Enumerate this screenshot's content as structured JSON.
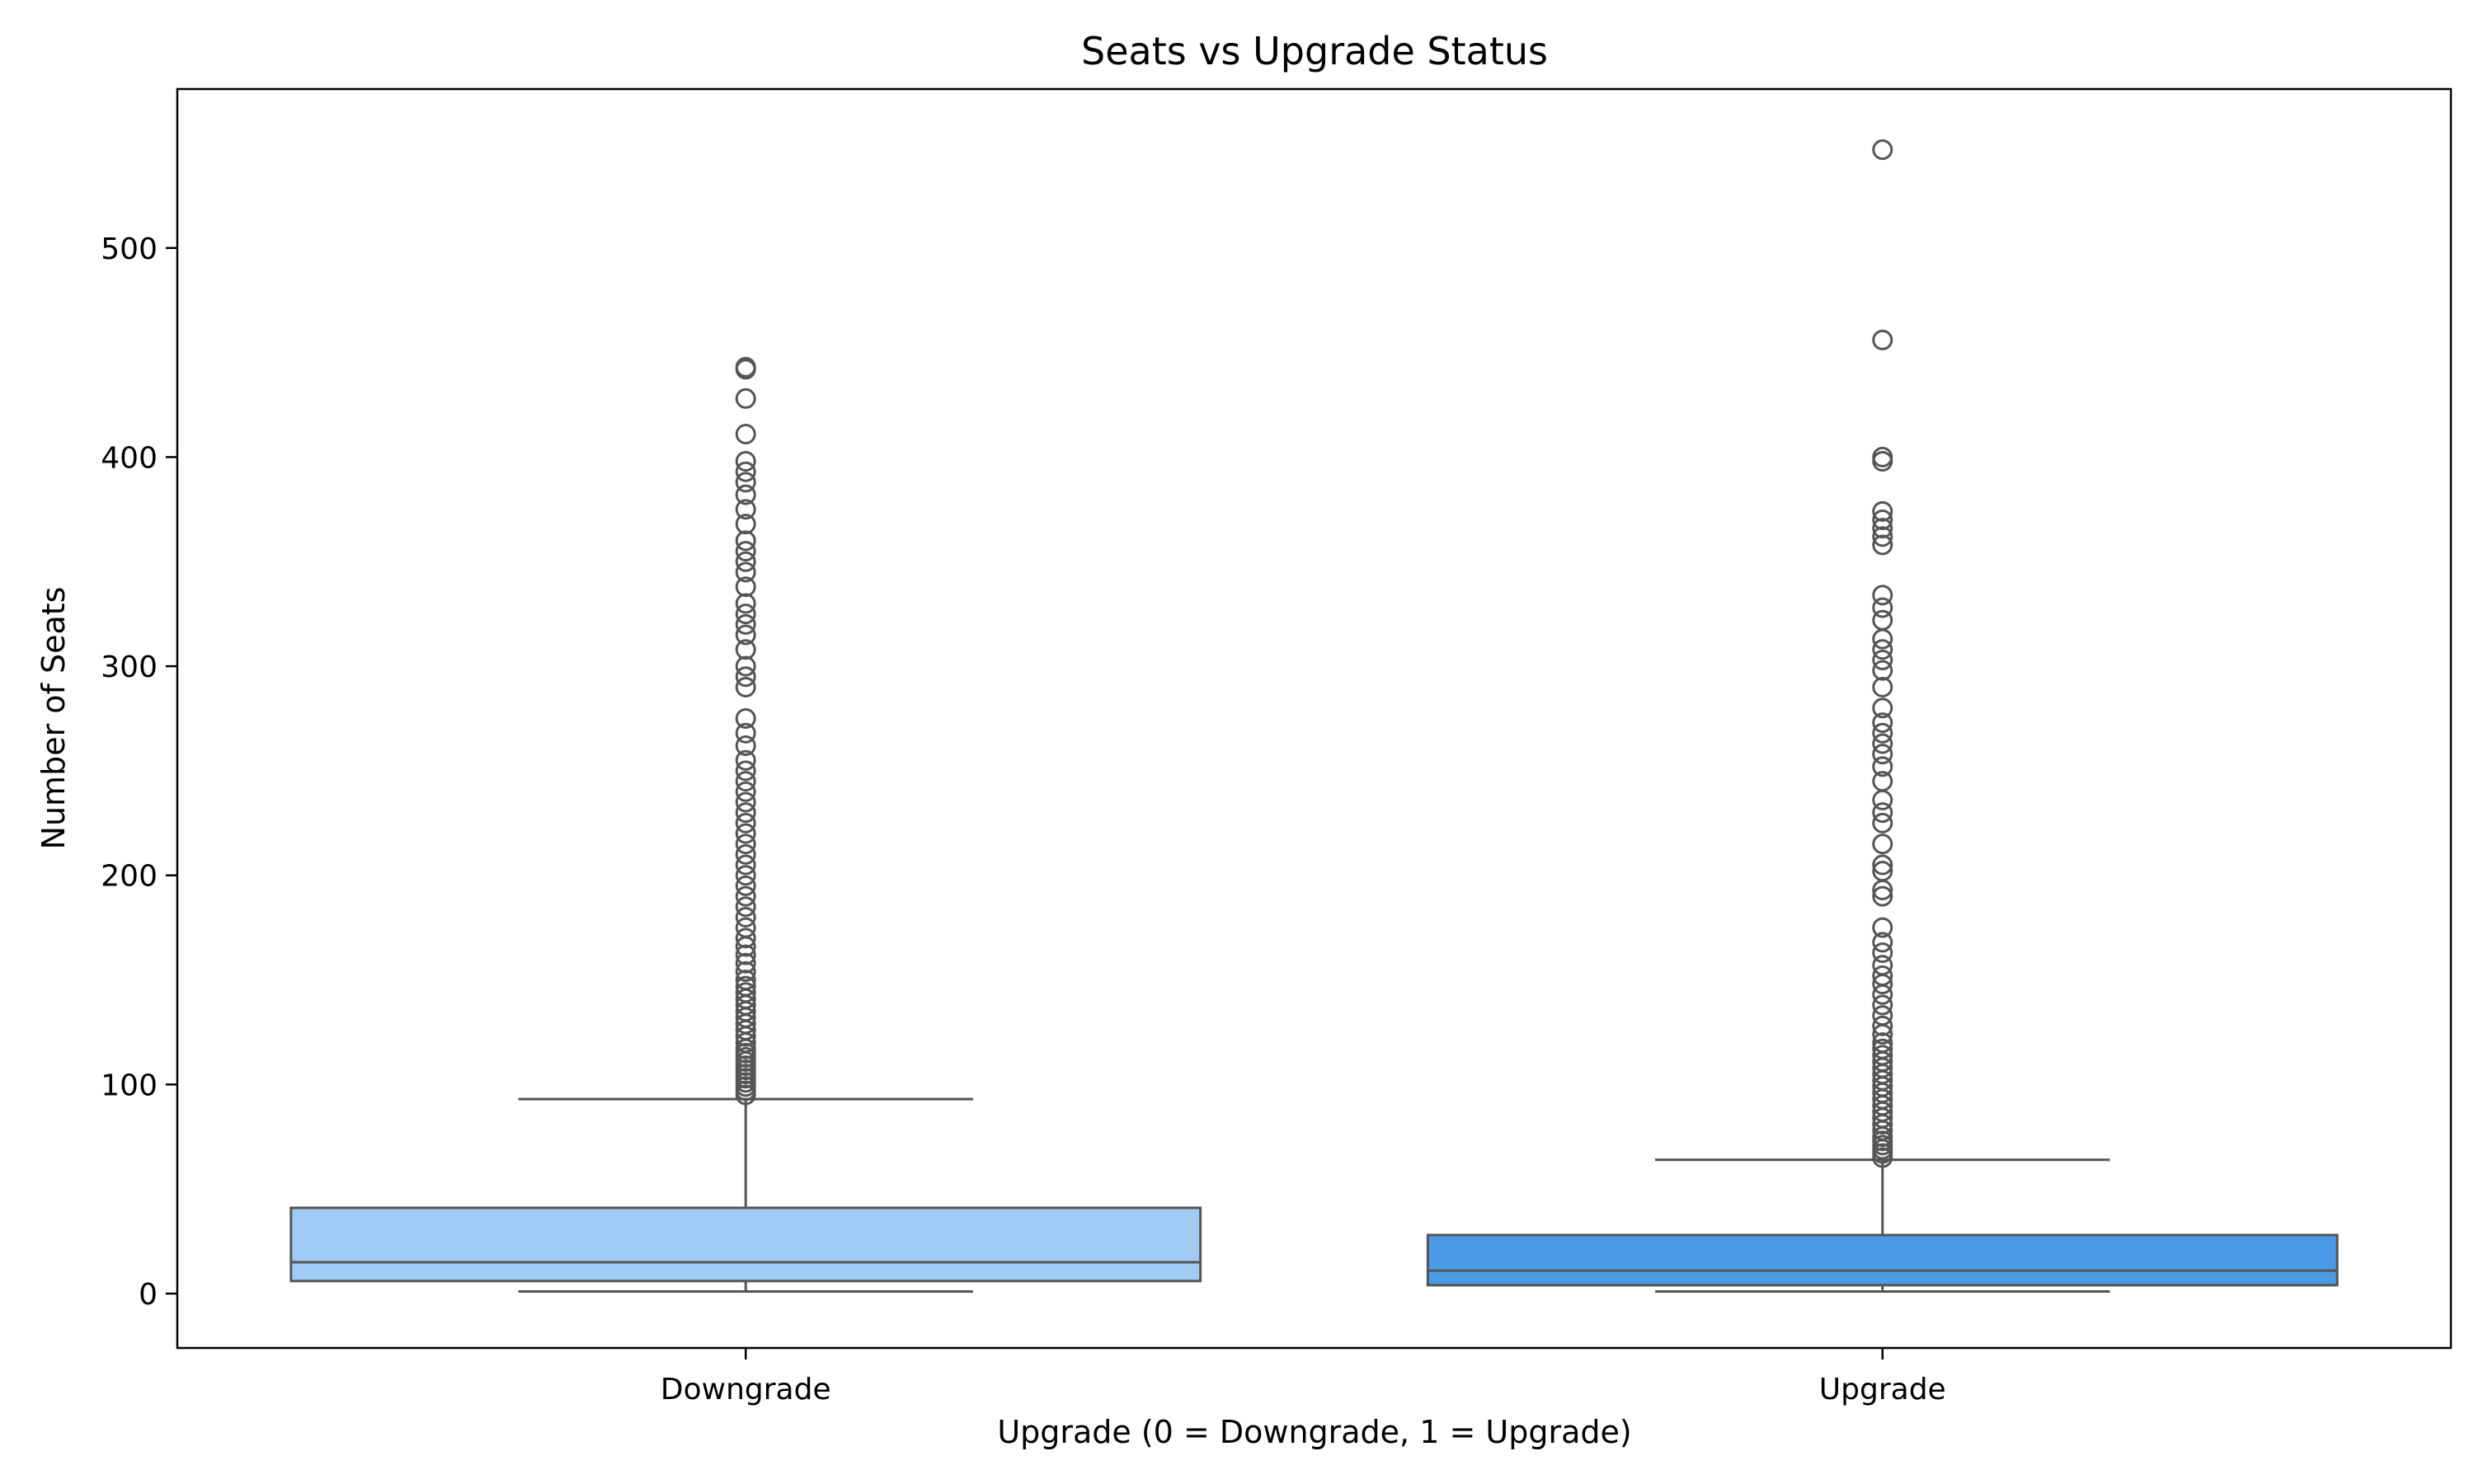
{
  "chart_data": {
    "type": "box",
    "title": "Seats vs Upgrade Status",
    "xlabel": "Upgrade (0 = Downgrade, 1 = Upgrade)",
    "ylabel": "Number of Seats",
    "ylim": [
      -26,
      576
    ],
    "yticks": [
      0,
      100,
      200,
      300,
      400,
      500
    ],
    "grid": false,
    "categories": [
      "Downgrade",
      "Upgrade"
    ],
    "colors": [
      "#a0cbf5",
      "#4a9ae6"
    ],
    "edge_color": "#555555",
    "boxes": [
      {
        "category": "Downgrade",
        "whisker_low": 1,
        "q1": 6,
        "median": 15,
        "q3": 41,
        "whisker_high": 93,
        "outliers": [
          95,
          97,
          99,
          101,
          103,
          105,
          107,
          109,
          111,
          113,
          115,
          117,
          120,
          123,
          126,
          129,
          132,
          135,
          138,
          141,
          144,
          147,
          150,
          154,
          158,
          162,
          166,
          170,
          175,
          180,
          185,
          190,
          195,
          200,
          205,
          210,
          215,
          220,
          225,
          230,
          235,
          240,
          245,
          250,
          255,
          262,
          268,
          275,
          290,
          295,
          300,
          308,
          315,
          320,
          325,
          330,
          338,
          345,
          350,
          355,
          360,
          368,
          375,
          382,
          388,
          393,
          398,
          411,
          428,
          442,
          443
        ]
      },
      {
        "category": "Upgrade",
        "whisker_low": 1,
        "q1": 4,
        "median": 11,
        "q3": 28,
        "whisker_high": 64,
        "outliers": [
          65,
          67,
          69,
          71,
          73,
          75,
          78,
          81,
          84,
          87,
          90,
          93,
          96,
          99,
          102,
          105,
          108,
          111,
          114,
          117,
          120,
          124,
          128,
          133,
          138,
          143,
          148,
          152,
          157,
          163,
          168,
          175,
          190,
          193,
          202,
          205,
          215,
          225,
          230,
          236,
          245,
          252,
          258,
          263,
          268,
          273,
          280,
          290,
          298,
          303,
          308,
          313,
          322,
          328,
          334,
          358,
          362,
          366,
          370,
          374,
          398,
          400,
          456,
          547
        ]
      }
    ]
  }
}
